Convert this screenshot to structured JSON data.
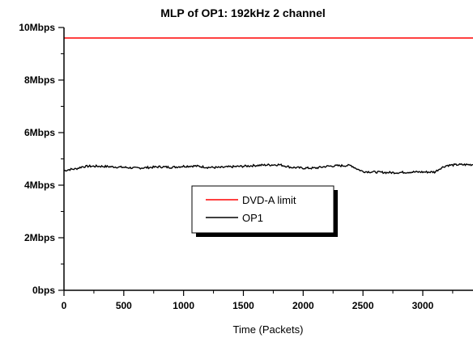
{
  "chart_data": {
    "type": "line",
    "title": "MLP of OP1: 192kHz 2 channel",
    "xlabel": "Time (Packets)",
    "ylabel": "",
    "xlim": [
      0,
      3420
    ],
    "ylim": [
      0,
      10
    ],
    "grid": false,
    "legend_position": "center",
    "x_ticks": [
      0,
      500,
      1000,
      1500,
      2000,
      2500,
      3000
    ],
    "x_tick_labels": [
      "0",
      "500",
      "1000",
      "1500",
      "2000",
      "2500",
      "3000"
    ],
    "y_ticks": [
      0,
      2,
      4,
      6,
      8,
      10
    ],
    "y_tick_labels": [
      "0bps",
      "2Mbps",
      "4Mbps",
      "6Mbps",
      "8Mbps",
      "10Mbps"
    ],
    "series": [
      {
        "name": "DVD-A limit",
        "color": "#ff0000",
        "x": [
          0,
          3420
        ],
        "y": [
          9.6,
          9.6
        ]
      },
      {
        "name": "OP1",
        "color": "#000000",
        "x": [
          0,
          50,
          100,
          150,
          200,
          300,
          400,
          500,
          600,
          700,
          800,
          900,
          1000,
          1100,
          1200,
          1300,
          1400,
          1500,
          1600,
          1700,
          1800,
          1900,
          2000,
          2100,
          2200,
          2300,
          2400,
          2450,
          2500,
          2600,
          2700,
          2800,
          2900,
          3000,
          3100,
          3150,
          3200,
          3300,
          3420
        ],
        "y": [
          4.55,
          4.6,
          4.62,
          4.7,
          4.72,
          4.72,
          4.7,
          4.68,
          4.65,
          4.67,
          4.7,
          4.68,
          4.72,
          4.73,
          4.68,
          4.67,
          4.7,
          4.72,
          4.75,
          4.77,
          4.78,
          4.68,
          4.65,
          4.65,
          4.72,
          4.74,
          4.75,
          4.62,
          4.52,
          4.5,
          4.48,
          4.48,
          4.5,
          4.5,
          4.5,
          4.65,
          4.75,
          4.78,
          4.78
        ]
      }
    ]
  }
}
